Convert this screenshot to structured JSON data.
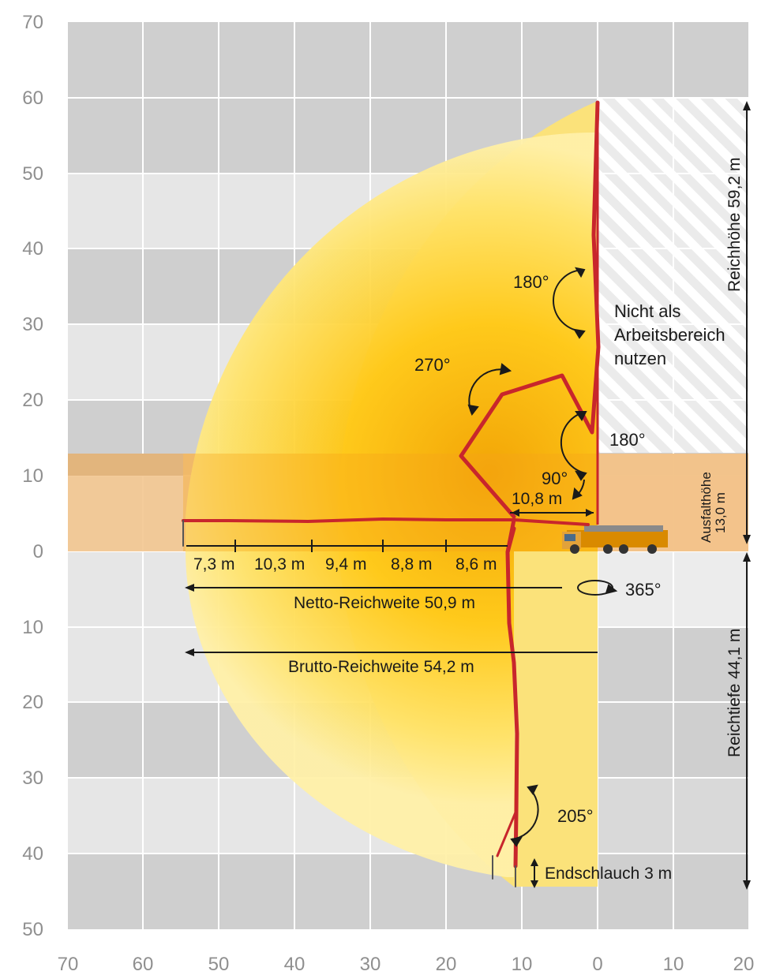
{
  "grid": {
    "x_axis_labels": [
      "70",
      "60",
      "50",
      "40",
      "30",
      "20",
      "10",
      "0",
      "10",
      "20"
    ],
    "y_axis_labels": [
      "70",
      "60",
      "50",
      "40",
      "30",
      "20",
      "10",
      "0",
      "10",
      "20",
      "30",
      "40",
      "50"
    ]
  },
  "colors": {
    "boom_red": "#c8262c",
    "zone_yellow": "#ffcf1a",
    "zone_orange": "#f4a100",
    "outer_band": "#fbe27a",
    "outrigger_band": "#f2c38a",
    "grid_dark": "#cfcfcf",
    "grid_light": "#e6e6e6",
    "text_gray": "#8f8f8f"
  },
  "annotations": {
    "angle_top": "180°",
    "angle_mid": "180°",
    "angle_270": "270°",
    "angle_90": "90°",
    "angle_205": "205°",
    "rotation": "365°",
    "not_work_area_line1": "Nicht als",
    "not_work_area_line2": "Arbeitsbereich",
    "not_work_area_line3": "nutzen",
    "dist_10_8": "10,8 m",
    "reach_height": "Reichhöhe 59,2 m",
    "reach_depth": "Reichtiefe 44,1 m",
    "outrigger_height_line1": "Ausfalthöhe",
    "outrigger_height_line2": "13,0 m",
    "net_reach": "Netto-Reichweite 50,9 m",
    "gross_reach": "Brutto-Reichweite 54,2 m",
    "end_hose": "Endschlauch 3 m"
  },
  "boom_segments": [
    "7,3 m",
    "10,3 m",
    "9,4 m",
    "8,8 m",
    "8,6 m"
  ]
}
